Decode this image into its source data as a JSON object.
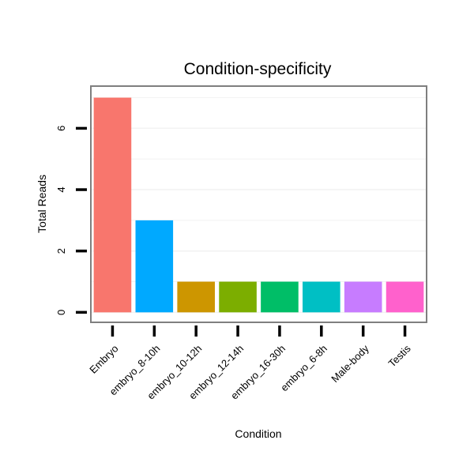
{
  "chart_data": {
    "type": "bar",
    "title": "Condition-specificity",
    "xlabel": "Condition",
    "ylabel": "Total Reads",
    "categories": [
      "Embryo",
      "embryo_8-10h",
      "embryo_10-12h",
      "embryo_12-14h",
      "embryo_16-30h",
      "embryo_6-8h",
      "Male-body",
      "Testis"
    ],
    "values": [
      7,
      3,
      1,
      1,
      1,
      1,
      1,
      1
    ],
    "colors": [
      "#F8766D",
      "#00A9FF",
      "#CD9600",
      "#7CAE00",
      "#00BE67",
      "#00BFC4",
      "#C77CFF",
      "#FF61CC"
    ],
    "yticks": [
      0,
      2,
      4,
      6
    ],
    "ylim": [
      -0.3,
      7.35
    ],
    "grid": true,
    "legend": "none"
  }
}
